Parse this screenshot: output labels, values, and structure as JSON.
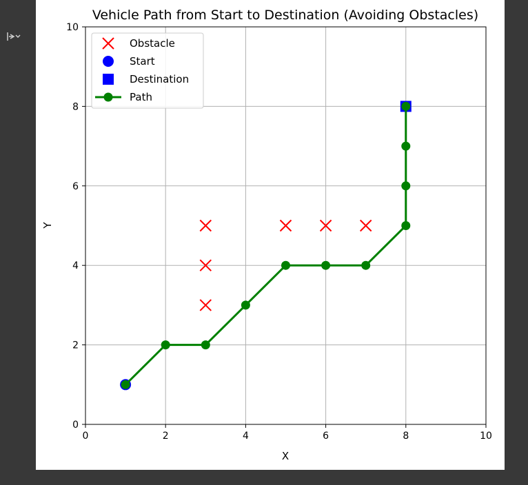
{
  "colors": {
    "obstacle": "#ff0000",
    "start": "#0000ff",
    "destination": "#0000ff",
    "path": "#008000",
    "grid": "#b0b0b0",
    "background_dark": "#383838"
  },
  "output_toggle": {
    "icon": "collapse-output-icon"
  },
  "chart_data": {
    "type": "scatter",
    "title": "Vehicle Path from Start to Destination (Avoiding Obstacles)",
    "xlabel": "X",
    "ylabel": "Y",
    "xlim": [
      0,
      10
    ],
    "ylim": [
      0,
      10
    ],
    "xticks": [
      "0",
      "2",
      "4",
      "6",
      "8",
      "10"
    ],
    "yticks": [
      "0",
      "2",
      "4",
      "6",
      "8",
      "10"
    ],
    "grid": true,
    "legend_position": "upper-left",
    "series": [
      {
        "name": "Obstacle",
        "marker": "x",
        "color": "#ff0000",
        "points": [
          [
            3,
            3
          ],
          [
            3,
            4
          ],
          [
            3,
            5
          ],
          [
            5,
            5
          ],
          [
            6,
            5
          ],
          [
            7,
            5
          ]
        ]
      },
      {
        "name": "Start",
        "marker": "circle",
        "color": "#0000ff",
        "points": [
          [
            1,
            1
          ]
        ]
      },
      {
        "name": "Destination",
        "marker": "square",
        "color": "#0000ff",
        "points": [
          [
            8,
            8
          ]
        ]
      },
      {
        "name": "Path",
        "marker": "circle-line",
        "color": "#008000",
        "points": [
          [
            1,
            1
          ],
          [
            2,
            2
          ],
          [
            3,
            2
          ],
          [
            4,
            3
          ],
          [
            5,
            4
          ],
          [
            6,
            4
          ],
          [
            7,
            4
          ],
          [
            8,
            5
          ],
          [
            8,
            6
          ],
          [
            8,
            7
          ],
          [
            8,
            8
          ]
        ]
      }
    ]
  }
}
